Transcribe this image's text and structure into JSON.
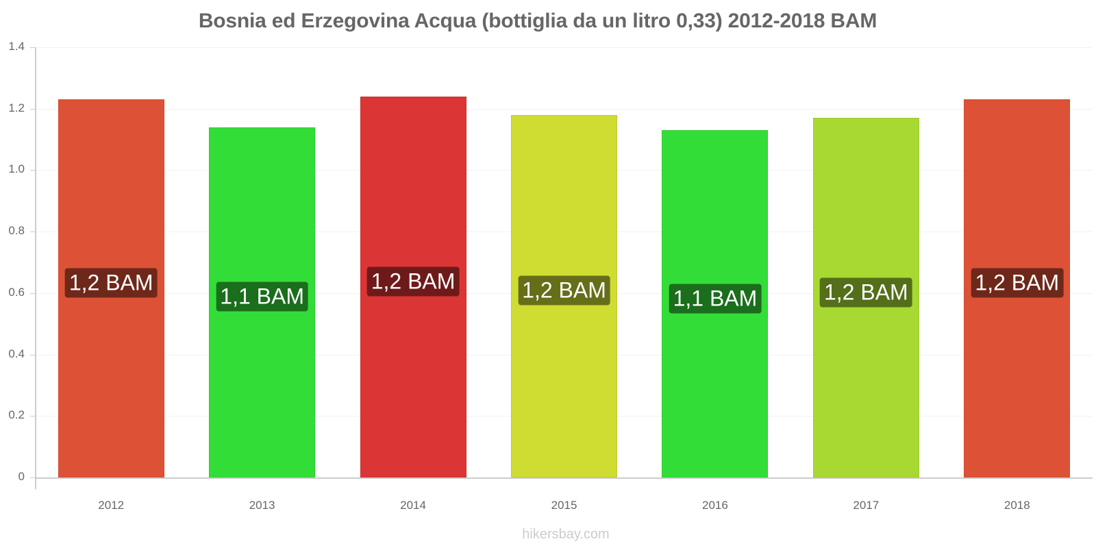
{
  "header": {
    "title": "Bosnia ed Erzegovina Acqua (bottiglia da un litro 0,33) 2012-2018 BAM"
  },
  "axis": {
    "y_ticks": [
      "0",
      "0.2",
      "0.4",
      "0.6",
      "0.8",
      "1.0",
      "1.2",
      "1.4"
    ],
    "x_ticks": [
      "2012",
      "2013",
      "2014",
      "2015",
      "2016",
      "2017",
      "2018"
    ]
  },
  "bars": [
    {
      "year": "2012",
      "value": 1.23,
      "label": "1,2 BAM",
      "color": "#dd5236",
      "label_bg": "#6e281a"
    },
    {
      "year": "2013",
      "value": 1.14,
      "label": "1,1 BAM",
      "color": "#33dd38",
      "label_bg": "#1a6e1c"
    },
    {
      "year": "2014",
      "value": 1.24,
      "label": "1,2 BAM",
      "color": "#dc3535",
      "label_bg": "#6e1a1a"
    },
    {
      "year": "2015",
      "value": 1.18,
      "label": "1,2 BAM",
      "color": "#cfdd33",
      "label_bg": "#676e1a"
    },
    {
      "year": "2016",
      "value": 1.13,
      "label": "1,1 BAM",
      "color": "#33dd38",
      "label_bg": "#1a6e1c"
    },
    {
      "year": "2017",
      "value": 1.17,
      "label": "1,2 BAM",
      "color": "#a8d933",
      "label_bg": "#546e1a"
    },
    {
      "year": "2018",
      "value": 1.23,
      "label": "1,2 BAM",
      "color": "#dd5236",
      "label_bg": "#6e281a"
    }
  ],
  "footer": {
    "watermark": "hikersbay.com"
  },
  "chart_data": {
    "type": "bar",
    "title": "Bosnia ed Erzegovina Acqua (bottiglia da un litro 0,33) 2012-2018 BAM",
    "categories": [
      "2012",
      "2013",
      "2014",
      "2015",
      "2016",
      "2017",
      "2018"
    ],
    "values": [
      1.23,
      1.14,
      1.24,
      1.18,
      1.13,
      1.17,
      1.23
    ],
    "data_labels": [
      "1,2 BAM",
      "1,1 BAM",
      "1,2 BAM",
      "1,2 BAM",
      "1,1 BAM",
      "1,2 BAM",
      "1,2 BAM"
    ],
    "colors": [
      "#dd5236",
      "#33dd38",
      "#dc3535",
      "#cfdd33",
      "#33dd38",
      "#a8d933",
      "#dd5236"
    ],
    "xlabel": "",
    "ylabel": "",
    "ylim": [
      0,
      1.4
    ],
    "yticks": [
      0,
      0.2,
      0.4,
      0.6,
      0.8,
      1.0,
      1.2,
      1.4
    ],
    "grid": true,
    "legend": null,
    "source": "hikersbay.com"
  }
}
